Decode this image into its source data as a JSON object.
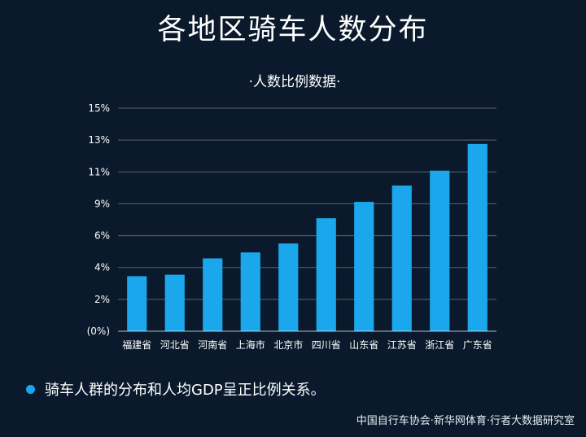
{
  "colors": {
    "background": "#0a1a2c",
    "bar": "#1aa7ec",
    "text": "#ffffff"
  },
  "chart_data": {
    "type": "bar",
    "title": "各地区骑车人数分布",
    "subtitle": "·人数比例数据·",
    "categories": [
      "福建省",
      "河北省",
      "河南省",
      "上海市",
      "北京市",
      "四川省",
      "山东省",
      "江苏省",
      "浙江省",
      "广东省"
    ],
    "values": [
      3.7,
      3.8,
      4.9,
      5.3,
      5.9,
      7.6,
      8.7,
      9.8,
      10.8,
      12.6
    ],
    "yticks": [
      "(0%)",
      "2%",
      "4%",
      "6%",
      "9%",
      "11%",
      "13%",
      "15%"
    ],
    "ylim": [
      0,
      15
    ],
    "grid": true,
    "xlabel": "",
    "ylabel": ""
  },
  "note": "骑车人群的分布和人均GDP呈正比例关系。",
  "source": "中国自行车协会·新华网体育·行者大数据研究室"
}
